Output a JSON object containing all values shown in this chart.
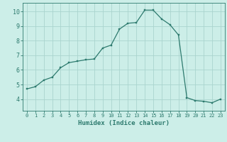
{
  "title": "",
  "xlabel": "Humidex (Indice chaleur)",
  "x": [
    0,
    1,
    2,
    3,
    4,
    5,
    6,
    7,
    8,
    9,
    10,
    11,
    12,
    13,
    14,
    15,
    16,
    17,
    18,
    19,
    20,
    21,
    22,
    23
  ],
  "y": [
    4.7,
    4.85,
    5.3,
    5.5,
    6.15,
    6.5,
    6.6,
    6.7,
    6.75,
    7.5,
    7.7,
    8.8,
    9.2,
    9.25,
    10.1,
    10.1,
    9.5,
    9.1,
    8.4,
    4.1,
    3.9,
    3.85,
    3.75,
    4.0
  ],
  "line_color": "#2d7a6e",
  "marker": "s",
  "marker_size": 1.8,
  "bg_color": "#cceee8",
  "grid_color": "#aad4ce",
  "tick_color": "#2d7a6e",
  "label_color": "#2d7a6e",
  "spine_color": "#2d7a6e",
  "ylim": [
    3.2,
    10.6
  ],
  "xlim": [
    -0.5,
    23.5
  ],
  "yticks": [
    4,
    5,
    6,
    7,
    8,
    9,
    10
  ],
  "xticks": [
    0,
    1,
    2,
    3,
    4,
    5,
    6,
    7,
    8,
    9,
    10,
    11,
    12,
    13,
    14,
    15,
    16,
    17,
    18,
    19,
    20,
    21,
    22,
    23
  ],
  "figsize": [
    3.2,
    2.0
  ],
  "dpi": 100
}
